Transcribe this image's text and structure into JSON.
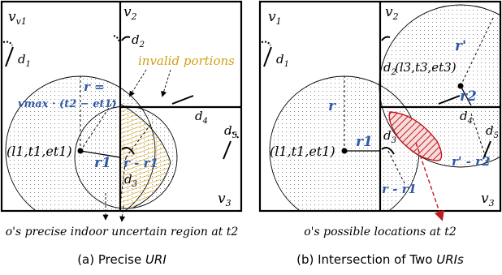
{
  "colors": {
    "blue_label": "#2f5aa8",
    "gold_label": "#d4a017",
    "red_region": "#c0191f",
    "wall": "#000000"
  },
  "panel_a": {
    "partitions": [
      "v1",
      "v2",
      "v3"
    ],
    "doors": [
      "d1",
      "d2",
      "d3",
      "d4",
      "d5"
    ],
    "point_label": "(l1,t1,et1)",
    "radius_label_r": "r =",
    "radius_label_formula": "vmax · (t2 − et1)",
    "r1_label": "r1",
    "r_minus_r1_label": "r - r1",
    "invalid_portions_label": "invalid portions",
    "region_caption": "o's precise indoor uncertain region at t2",
    "subcaption_prefix": "(a) Precise ",
    "subcaption_math": "URI"
  },
  "panel_b": {
    "partitions": [
      "v1",
      "v2",
      "v3"
    ],
    "doors": [
      "d1",
      "d2",
      "d3",
      "d4",
      "d5"
    ],
    "point1_label": "(l1,t1,et1)",
    "point2_label": "(l3,t3,et3)",
    "r_label": "r",
    "r1_label": "r1",
    "r_minus_r1_label": "r - r1",
    "r_prime_label": "r'",
    "r2_label": "r2",
    "r_prime_minus_r2_label": "r' - r2",
    "region_caption": "o's possible locations at t2",
    "subcaption_prefix": "(b) Intersection of Two ",
    "subcaption_math": "URIs"
  }
}
